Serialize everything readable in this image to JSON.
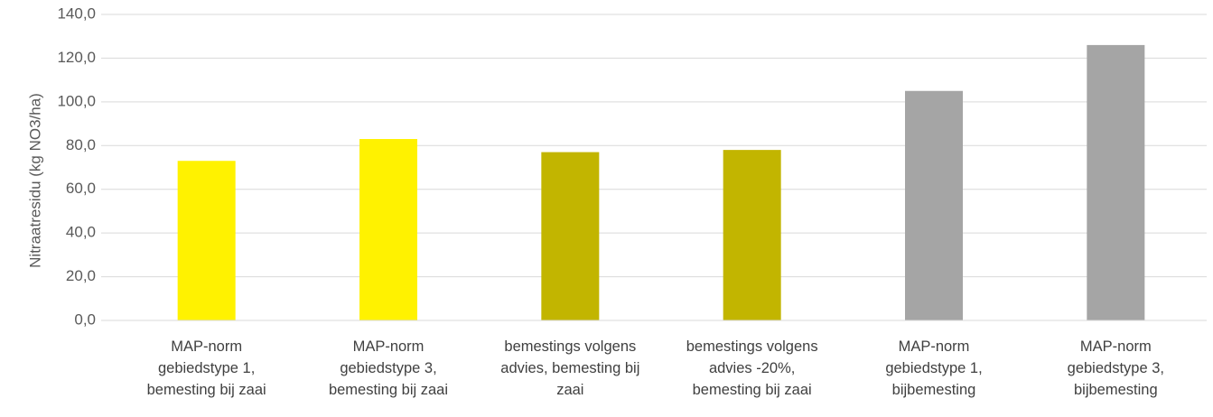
{
  "chart_data": {
    "type": "bar",
    "y_label": "Nitraatresidu (kg NO3/ha)",
    "categories": [
      "MAP-norm gebiedstype 1, bemesting bij zaai",
      "MAP-norm gebiedstype 3, bemesting bij zaai",
      "bemestings volgens advies, bemesting bij zaai",
      "bemestings volgens advies -20%, bemesting bij zaai",
      "MAP-norm gebiedstype 1, bijbemesting",
      "MAP-norm gebiedstype 3, bijbemesting"
    ],
    "values": [
      73,
      83,
      77,
      78,
      105,
      126
    ],
    "colors": [
      "#fff200",
      "#fff200",
      "#c2b500",
      "#c2b500",
      "#a5a5a5",
      "#a5a5a5"
    ],
    "ylim": [
      0,
      140
    ],
    "yticks": [
      {
        "value": 0,
        "label": "0,0"
      },
      {
        "value": 20,
        "label": "20,0"
      },
      {
        "value": 40,
        "label": "40,0"
      },
      {
        "value": 60,
        "label": "60,0"
      },
      {
        "value": 80,
        "label": "80,0"
      },
      {
        "value": 100,
        "label": "100,0"
      },
      {
        "value": 120,
        "label": "120,0"
      },
      {
        "value": 140,
        "label": "140,0"
      }
    ],
    "grid": true
  }
}
